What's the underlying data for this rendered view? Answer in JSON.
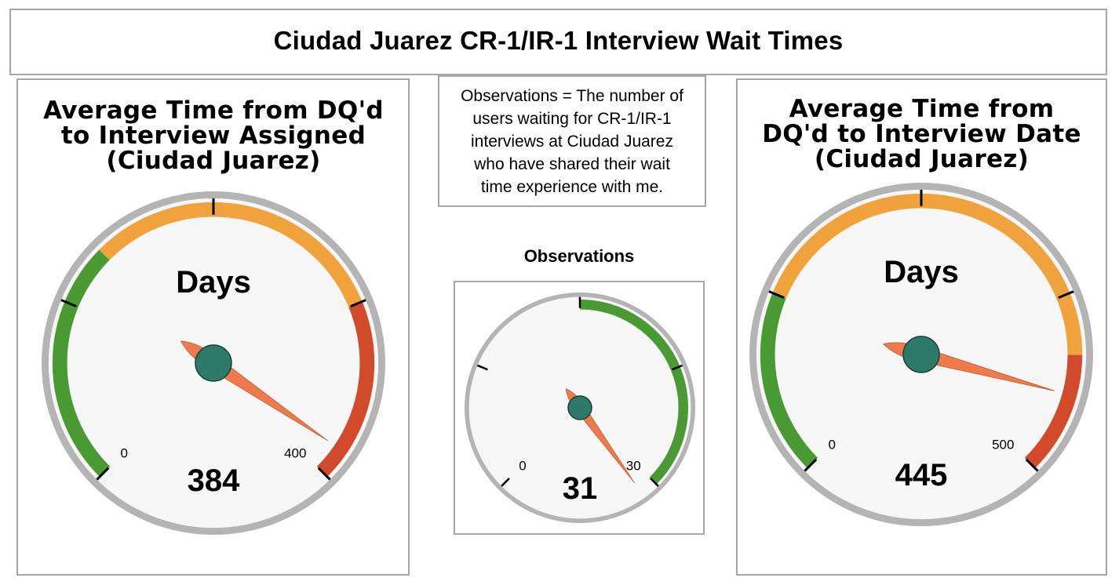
{
  "header": {
    "title": "Ciudad Juarez CR-1/IR-1 Interview Wait Times"
  },
  "note": {
    "lines": [
      "Observations = The number of",
      "users waiting for CR-1/IR-1",
      "interviews at Ciudad Juarez",
      "who have shared their wait",
      "time experience with me."
    ]
  },
  "observations_panel": {
    "title": "Observations"
  },
  "left_panel": {
    "title_lines": [
      "Average Time from DQ'd",
      "to Interview Assigned",
      "(Ciudad Juarez)"
    ]
  },
  "right_panel": {
    "title_lines": [
      "Average Time from",
      "DQ'd to Interview Date",
      "(Ciudad Juarez)"
    ]
  },
  "chart_data": [
    {
      "type": "gauge",
      "name": "assigned",
      "unit": "Days",
      "value": 384,
      "value_label": "384",
      "min": 0,
      "max": 400,
      "min_label": "0",
      "max_label": "400",
      "bands": [
        {
          "from": 0,
          "to": 133,
          "color": "#4a9a34"
        },
        {
          "from": 133,
          "to": 300,
          "color": "#f0a23c"
        },
        {
          "from": 300,
          "to": 400,
          "color": "#d04a2b"
        }
      ]
    },
    {
      "type": "gauge",
      "name": "observations",
      "unit": "",
      "value": 31,
      "value_label": "31",
      "min": 0,
      "max": 30,
      "min_label": "0",
      "max_label": "30",
      "bands": [
        {
          "from": 15,
          "to": 30,
          "color": "#4a9a34"
        }
      ]
    },
    {
      "type": "gauge",
      "name": "date",
      "unit": "Days",
      "value": 445,
      "value_label": "445",
      "min": 0,
      "max": 500,
      "min_label": "0",
      "max_label": "500",
      "bands": [
        {
          "from": 0,
          "to": 125,
          "color": "#4a9a34"
        },
        {
          "from": 125,
          "to": 417,
          "color": "#f0a23c"
        },
        {
          "from": 417,
          "to": 500,
          "color": "#d04a2b"
        }
      ]
    }
  ],
  "colors": {
    "needle": "#ef7b4d",
    "hub": "#2e7a6a",
    "face": "#f7f7f7",
    "rim": "#b4b4b4"
  }
}
